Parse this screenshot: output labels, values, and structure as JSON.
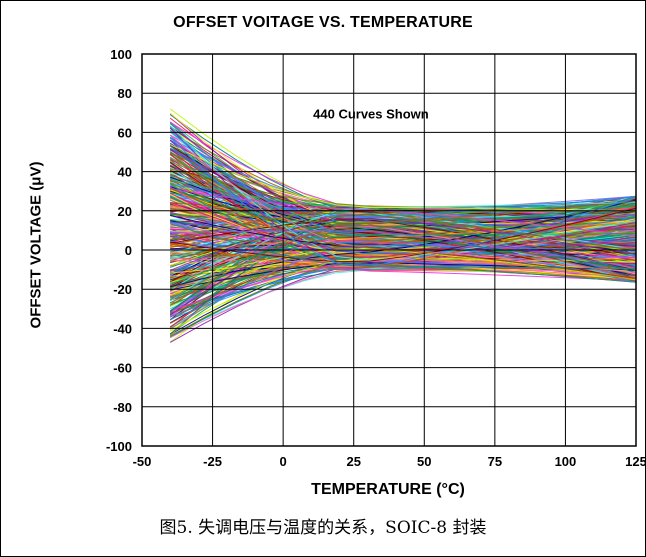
{
  "chart_data": {
    "type": "line",
    "title": "OFFSET VOITAGE VS. TEMPERATURE",
    "xlabel": "TEMPERATURE (°C)",
    "ylabel": "OFFSET VOLTAGE (μV)",
    "xlim": [
      -50,
      125
    ],
    "ylim": [
      -100,
      100
    ],
    "x_ticks": [
      "-50",
      "-25",
      "0",
      "25",
      "50",
      "75",
      "100",
      "125"
    ],
    "y_ticks": [
      "100",
      "80",
      "60",
      "40",
      "20",
      "0",
      "-20",
      "-40",
      "-60",
      "-80",
      "-100"
    ],
    "grid": true,
    "annotation": "440 Curves Shown",
    "curve_count": 440,
    "x_range_of_curves": [
      -40,
      125
    ],
    "value_envelope": {
      "at_-40": [
        -53,
        74
      ],
      "at_25": [
        -18,
        30
      ],
      "at_125": [
        -22,
        33
      ]
    }
  },
  "caption": "图5. 失调电压与温度的关系，SOIC-8 封装",
  "colors": {
    "background": "#ffffff",
    "axis": "#000000",
    "series_palette": [
      "#e6194b",
      "#3cb44b",
      "#ffe119",
      "#4363d8",
      "#f58231",
      "#911eb4",
      "#46f0f0",
      "#f032e6",
      "#bcf60c",
      "#008080",
      "#9a6324",
      "#800000",
      "#808000",
      "#000075",
      "#ff69b4",
      "#00a86b",
      "#1e90ff",
      "#cc5500",
      "#7b68ee",
      "#2e8b57"
    ]
  }
}
